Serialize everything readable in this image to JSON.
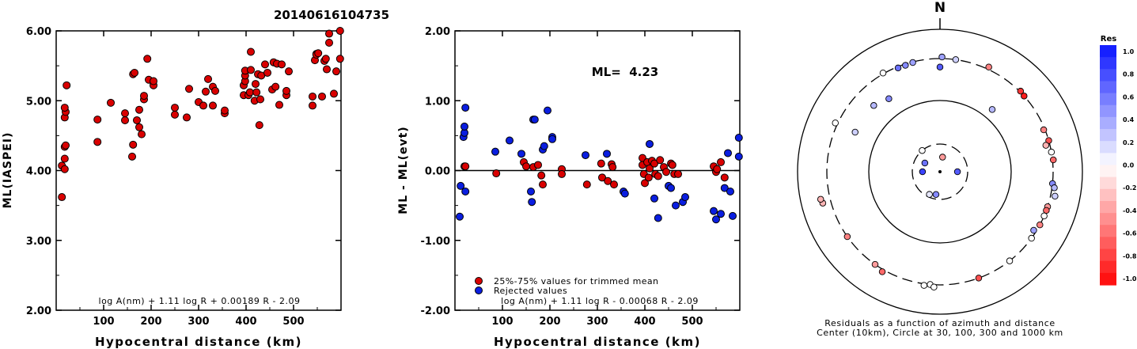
{
  "title": "20140616104735",
  "colors": {
    "marker_red": "#d90000",
    "marker_blue": "#0a1ee0"
  },
  "chart_data": [
    {
      "type": "scatter",
      "xlabel": "Hypocentral distance (km)",
      "ylabel": "ML(IASPEI)",
      "xlim": [
        0,
        600
      ],
      "ylim": [
        2,
        6
      ],
      "xticks": [
        {
          "value": 100,
          "label": "100"
        },
        {
          "value": 200,
          "label": "200"
        },
        {
          "value": 300,
          "label": "300"
        },
        {
          "value": 400,
          "label": "400"
        },
        {
          "value": 500,
          "label": "500"
        }
      ],
      "yticks": [
        {
          "value": 2,
          "label": "2.00"
        },
        {
          "value": 3,
          "label": "3.00"
        },
        {
          "value": 4,
          "label": "4.00"
        },
        {
          "value": 5,
          "label": "5.00"
        },
        {
          "value": 6,
          "label": "6.00"
        }
      ],
      "annotation": "log A(nm) + 1.11 log R + 0.00189 R - 2.09",
      "points": [
        [
          12,
          3.62
        ],
        [
          12,
          4.07
        ],
        [
          18,
          4.02
        ],
        [
          18,
          4.17
        ],
        [
          18,
          4.34
        ],
        [
          20,
          4.36
        ],
        [
          18,
          4.76
        ],
        [
          20,
          4.84
        ],
        [
          18,
          4.9
        ],
        [
          22,
          5.22
        ],
        [
          87,
          4.41
        ],
        [
          87,
          4.73
        ],
        [
          115,
          4.97
        ],
        [
          145,
          4.72
        ],
        [
          145,
          4.82
        ],
        [
          160,
          4.2
        ],
        [
          162,
          4.37
        ],
        [
          162,
          5.38
        ],
        [
          165,
          5.4
        ],
        [
          170,
          4.72
        ],
        [
          175,
          4.62
        ],
        [
          175,
          4.87
        ],
        [
          180,
          4.52
        ],
        [
          185,
          5.02
        ],
        [
          185,
          5.07
        ],
        [
          192,
          5.6
        ],
        [
          195,
          5.3
        ],
        [
          205,
          5.22
        ],
        [
          205,
          5.28
        ],
        [
          250,
          4.8
        ],
        [
          250,
          4.9
        ],
        [
          275,
          4.76
        ],
        [
          280,
          5.17
        ],
        [
          300,
          4.98
        ],
        [
          310,
          4.93
        ],
        [
          315,
          5.13
        ],
        [
          320,
          5.31
        ],
        [
          330,
          4.93
        ],
        [
          330,
          5.2
        ],
        [
          335,
          5.14
        ],
        [
          355,
          4.82
        ],
        [
          355,
          4.86
        ],
        [
          395,
          5.08
        ],
        [
          395,
          5.22
        ],
        [
          398,
          5.28
        ],
        [
          398,
          5.36
        ],
        [
          398,
          5.43
        ],
        [
          405,
          5.08
        ],
        [
          408,
          5.12
        ],
        [
          410,
          5.44
        ],
        [
          410,
          5.7
        ],
        [
          418,
          5.0
        ],
        [
          420,
          5.24
        ],
        [
          422,
          5.12
        ],
        [
          425,
          5.38
        ],
        [
          428,
          4.65
        ],
        [
          430,
          5.02
        ],
        [
          432,
          5.36
        ],
        [
          440,
          5.52
        ],
        [
          445,
          5.4
        ],
        [
          455,
          5.16
        ],
        [
          458,
          5.55
        ],
        [
          462,
          5.2
        ],
        [
          465,
          5.53
        ],
        [
          470,
          4.94
        ],
        [
          475,
          5.52
        ],
        [
          485,
          5.08
        ],
        [
          485,
          5.14
        ],
        [
          490,
          5.42
        ],
        [
          540,
          4.93
        ],
        [
          540,
          5.06
        ],
        [
          545,
          5.58
        ],
        [
          548,
          5.67
        ],
        [
          548,
          5.66
        ],
        [
          552,
          5.68
        ],
        [
          560,
          5.06
        ],
        [
          565,
          5.57
        ],
        [
          568,
          5.6
        ],
        [
          570,
          5.45
        ],
        [
          575,
          5.83
        ],
        [
          575,
          5.96
        ],
        [
          585,
          5.1
        ],
        [
          590,
          5.42
        ],
        [
          598,
          5.6
        ],
        [
          598,
          6.0
        ]
      ]
    },
    {
      "type": "scatter",
      "xlabel": "Hypocentral distance (km)",
      "ylabel": "ML - ML(evt)",
      "xlim": [
        0,
        600
      ],
      "ylim": [
        -2,
        2
      ],
      "xticks": [
        {
          "value": 100,
          "label": "100"
        },
        {
          "value": 200,
          "label": "200"
        },
        {
          "value": 300,
          "label": "300"
        },
        {
          "value": 400,
          "label": "400"
        },
        {
          "value": 500,
          "label": "500"
        }
      ],
      "yticks": [
        {
          "value": -2,
          "label": "-2.00"
        },
        {
          "value": -1,
          "label": "-1.00"
        },
        {
          "value": 0,
          "label": "0.00"
        },
        {
          "value": 1,
          "label": "1.00"
        },
        {
          "value": 2,
          "label": "2.00"
        }
      ],
      "zero_line": 0,
      "ml_label": "ML=  4.23",
      "legend": [
        {
          "label": "25%-75% values for trimmed mean",
          "color": "#d90000"
        },
        {
          "label": "Rejected values",
          "color": "#0a1ee0"
        }
      ],
      "annotation": "log A(nm) + 1.11 log R - 0.00068 R - 2.09",
      "series": [
        {
          "name": "25%-75% values for trimmed mean",
          "color": "#d90000",
          "points": [
            [
              20,
              0.06
            ],
            [
              22,
              0.06
            ],
            [
              87,
              -0.04
            ],
            [
              145,
              0.12
            ],
            [
              150,
              0.06
            ],
            [
              165,
              0.05
            ],
            [
              175,
              0.08
            ],
            [
              182,
              -0.07
            ],
            [
              185,
              -0.2
            ],
            [
              225,
              0.02
            ],
            [
              225,
              -0.05
            ],
            [
              278,
              -0.2
            ],
            [
              308,
              0.1
            ],
            [
              310,
              -0.1
            ],
            [
              322,
              -0.15
            ],
            [
              330,
              0.09
            ],
            [
              332,
              0.05
            ],
            [
              335,
              -0.2
            ],
            [
              395,
              0.18
            ],
            [
              395,
              0.08
            ],
            [
              398,
              -0.05
            ],
            [
              400,
              -0.18
            ],
            [
              405,
              0.12
            ],
            [
              408,
              -0.1
            ],
            [
              410,
              0.03
            ],
            [
              415,
              0.14
            ],
            [
              420,
              0.1
            ],
            [
              422,
              -0.05
            ],
            [
              428,
              -0.08
            ],
            [
              432,
              0.15
            ],
            [
              440,
              0.05
            ],
            [
              445,
              -0.02
            ],
            [
              455,
              0.1
            ],
            [
              458,
              0.08
            ],
            [
              462,
              -0.05
            ],
            [
              470,
              -0.05
            ],
            [
              545,
              0.06
            ],
            [
              550,
              -0.02
            ],
            [
              552,
              0.02
            ],
            [
              560,
              0.12
            ],
            [
              568,
              -0.1
            ]
          ]
        },
        {
          "name": "Rejected values",
          "color": "#0a1ee0",
          "points": [
            [
              10,
              -0.66
            ],
            [
              12,
              -0.22
            ],
            [
              18,
              0.48
            ],
            [
              20,
              0.54
            ],
            [
              20,
              0.63
            ],
            [
              22,
              0.9
            ],
            [
              22,
              -0.3
            ],
            [
              85,
              0.27
            ],
            [
              115,
              0.43
            ],
            [
              140,
              0.24
            ],
            [
              160,
              -0.3
            ],
            [
              162,
              -0.45
            ],
            [
              165,
              0.73
            ],
            [
              168,
              0.73
            ],
            [
              185,
              0.3
            ],
            [
              188,
              0.35
            ],
            [
              195,
              0.86
            ],
            [
              205,
              0.48
            ],
            [
              205,
              0.45
            ],
            [
              275,
              0.22
            ],
            [
              320,
              0.24
            ],
            [
              355,
              -0.3
            ],
            [
              358,
              -0.33
            ],
            [
              410,
              0.38
            ],
            [
              420,
              -0.4
            ],
            [
              428,
              -0.68
            ],
            [
              450,
              -0.22
            ],
            [
              455,
              -0.25
            ],
            [
              465,
              -0.5
            ],
            [
              480,
              -0.45
            ],
            [
              485,
              -0.38
            ],
            [
              545,
              -0.58
            ],
            [
              550,
              -0.7
            ],
            [
              560,
              -0.62
            ],
            [
              568,
              -0.25
            ],
            [
              575,
              0.25
            ],
            [
              580,
              -0.3
            ],
            [
              585,
              -0.65
            ],
            [
              598,
              0.47
            ],
            [
              598,
              0.2
            ]
          ]
        }
      ]
    },
    {
      "type": "polar-scatter",
      "north_label": "N",
      "caption_line1": "Residuals as a function of azimuth and distance",
      "caption_line2": "Center (10km), Circle at 30, 100, 300 and 1000 km",
      "rings_km": [
        30,
        100,
        300,
        1000
      ],
      "colorbar": {
        "title": "Res",
        "labels": [
          "1.0",
          "0.8",
          "0.6",
          "0.4",
          "0.2",
          "0.0",
          "-0.2",
          "-0.4",
          "-0.6",
          "-0.8",
          "-1.0"
        ],
        "min": -1.0,
        "max": 1.0
      },
      "points": [
        {
          "az": 270.0,
          "dist_km": 20,
          "res": 0.8
        },
        {
          "az": 300,
          "dist_km": 20,
          "res": 0.6
        },
        {
          "az": 90,
          "dist_km": 20,
          "res": 0.7
        },
        {
          "az": 10,
          "dist_km": 18,
          "res": -0.4
        },
        {
          "az": 320,
          "dist_km": 30,
          "res": 0.0
        },
        {
          "az": 205,
          "dist_km": 27,
          "res": 0.1
        },
        {
          "az": 190,
          "dist_km": 25,
          "res": 0.5
        },
        {
          "az": 1,
          "dist_km": 320,
          "res": 0.4
        },
        {
          "az": 8,
          "dist_km": 300,
          "res": 0.2
        },
        {
          "az": 330,
          "dist_km": 310,
          "res": 0.0
        },
        {
          "az": 338,
          "dist_km": 290,
          "res": 0.6
        },
        {
          "az": 342,
          "dist_km": 290,
          "res": 0.5
        },
        {
          "az": 346,
          "dist_km": 295,
          "res": 0.4
        },
        {
          "az": 0,
          "dist_km": 240,
          "res": 0.7
        },
        {
          "az": 25,
          "dist_km": 330,
          "res": -0.5
        },
        {
          "az": 45,
          "dist_km": 310,
          "res": -0.8
        },
        {
          "az": 48,
          "dist_km": 300,
          "res": -0.9
        },
        {
          "az": 40,
          "dist_km": 130,
          "res": 0.3
        },
        {
          "az": 325,
          "dist_km": 160,
          "res": 0.5
        },
        {
          "az": 315,
          "dist_km": 180,
          "res": 0.3
        },
        {
          "az": 295,
          "dist_km": 180,
          "res": 0.2
        },
        {
          "az": 68,
          "dist_km": 290,
          "res": -0.5
        },
        {
          "az": 74,
          "dist_km": 300,
          "res": -0.7
        },
        {
          "az": 76,
          "dist_km": 270,
          "res": -0.3
        },
        {
          "az": 80,
          "dist_km": 300,
          "res": 0.0
        },
        {
          "az": 84,
          "dist_km": 310,
          "res": -0.6
        },
        {
          "az": 96,
          "dist_km": 300,
          "res": 0.5
        },
        {
          "az": 98,
          "dist_km": 330,
          "res": 0.3
        },
        {
          "az": 102,
          "dist_km": 360,
          "res": 0.2
        },
        {
          "az": 108,
          "dist_km": 300,
          "res": -0.4
        },
        {
          "az": 110,
          "dist_km": 300,
          "res": -0.6
        },
        {
          "az": 113,
          "dist_km": 300,
          "res": 0.0
        },
        {
          "az": 118,
          "dist_km": 300,
          "res": -0.5
        },
        {
          "az": 122,
          "dist_km": 280,
          "res": 0.4
        },
        {
          "az": 126,
          "dist_km": 300,
          "res": 0.0
        },
        {
          "az": 142,
          "dist_km": 300,
          "res": 0.0
        },
        {
          "az": 160,
          "dist_km": 300,
          "res": -0.7
        },
        {
          "az": 185,
          "dist_km": 300,
          "res": 0.0
        },
        {
          "az": 188,
          "dist_km": 320,
          "res": 0.0
        },
        {
          "az": 183,
          "dist_km": 330,
          "res": 0.0
        },
        {
          "az": 215,
          "dist_km": 300,
          "res": -0.4
        },
        {
          "az": 235,
          "dist_km": 300,
          "res": -0.5
        },
        {
          "az": 255,
          "dist_km": 420,
          "res": -0.3
        },
        {
          "az": 257,
          "dist_km": 440,
          "res": -0.3
        },
        {
          "az": 210,
          "dist_km": 330,
          "res": -0.6
        },
        {
          "az": 295,
          "dist_km": 330,
          "res": 0.0
        }
      ]
    }
  ]
}
